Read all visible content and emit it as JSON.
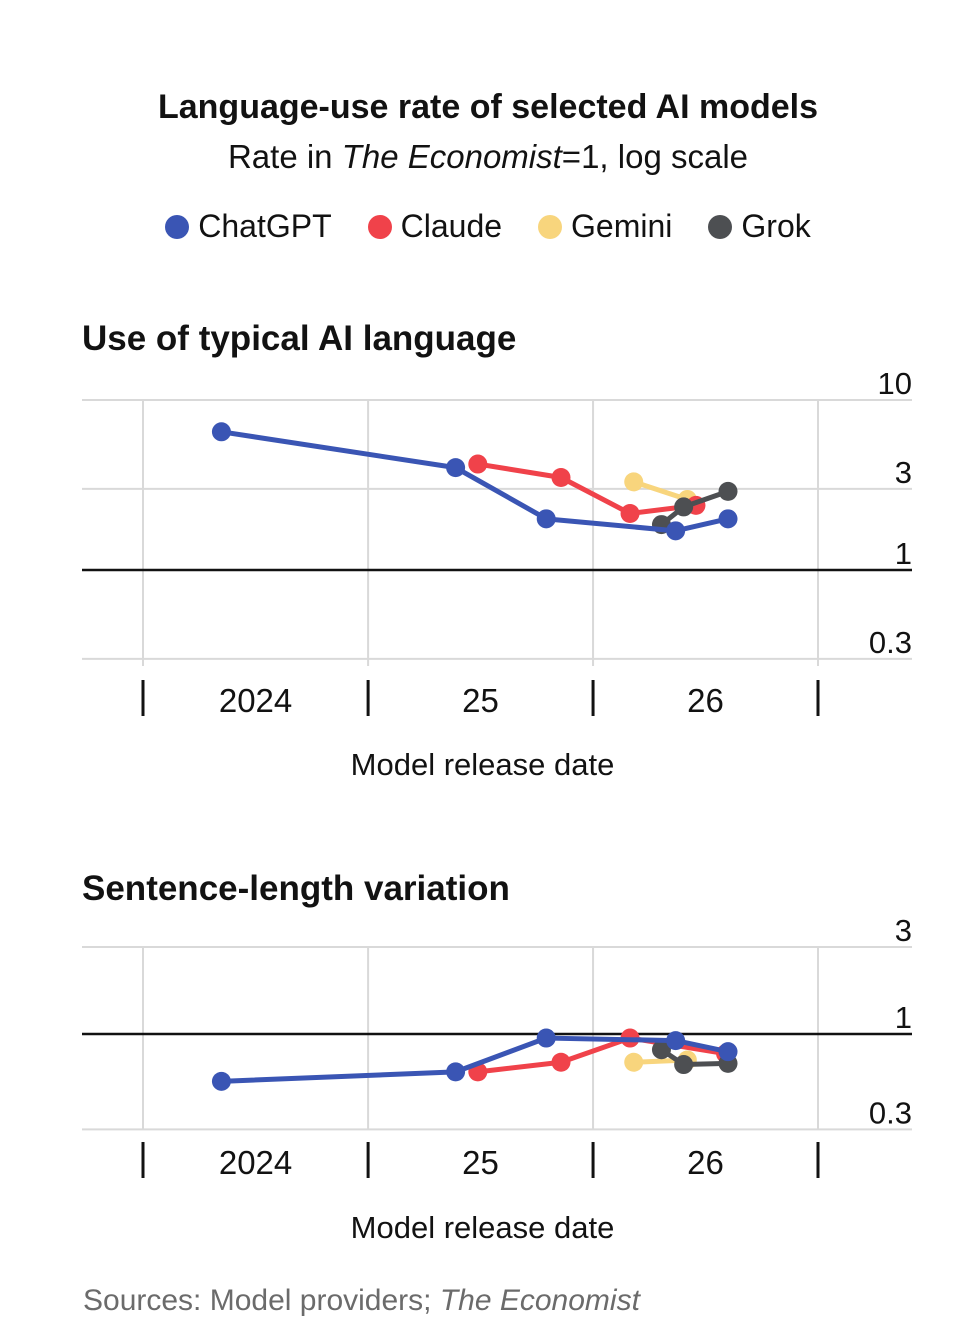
{
  "title": "Language-use rate of selected AI models",
  "subtitle_prefix": "Rate in ",
  "subtitle_italic": "The Economist",
  "subtitle_suffix": "=1, log scale",
  "legend": [
    {
      "name": "ChatGPT",
      "color": "#3a55b4"
    },
    {
      "name": "Claude",
      "color": "#f0424a"
    },
    {
      "name": "Gemini",
      "color": "#f8d57d"
    },
    {
      "name": "Grok",
      "color": "#4d4f52"
    }
  ],
  "source_prefix": "Sources: Model providers; ",
  "source_italic": "The Economist",
  "chart_data": [
    {
      "type": "line",
      "title": "Use of typical AI language",
      "xlabel": "Model release date",
      "ylabel": "",
      "y_scale": "log",
      "ylim": [
        0.3,
        10
      ],
      "yticks": [
        {
          "value": 10,
          "label": "10"
        },
        {
          "value": 3,
          "label": "3"
        },
        {
          "value": 1,
          "label": "1"
        },
        {
          "value": 0.3,
          "label": "0.3"
        }
      ],
      "xlim": [
        "2023-07-01",
        "2026-07-01"
      ],
      "xticks": [
        {
          "value": "2024-07-01",
          "label": "2024"
        },
        {
          "value": "2025-07-01",
          "label": "25"
        },
        {
          "value": "2026-07-01",
          "label": "26"
        }
      ],
      "grid": true,
      "series": [
        {
          "name": "ChatGPT",
          "color": "#3a55b4",
          "points": [
            [
              "2023-11-06",
              6.5
            ],
            [
              "2024-11-20",
              4.0
            ],
            [
              "2025-04-16",
              2.0
            ],
            [
              "2025-11-12",
              1.7
            ],
            [
              "2026-02-05",
              2.0
            ]
          ]
        },
        {
          "name": "Claude",
          "color": "#f0424a",
          "points": [
            [
              "2024-12-26",
              4.2
            ],
            [
              "2025-05-10",
              3.5
            ],
            [
              "2025-08-30",
              2.15
            ],
            [
              "2025-12-15",
              2.4
            ]
          ]
        },
        {
          "name": "Gemini",
          "color": "#f8d57d",
          "points": [
            [
              "2025-09-05",
              3.3
            ],
            [
              "2025-12-01",
              2.6
            ]
          ]
        },
        {
          "name": "Grok",
          "color": "#4d4f52",
          "points": [
            [
              "2025-10-20",
              1.85
            ],
            [
              "2025-11-25",
              2.35
            ],
            [
              "2026-02-05",
              2.9
            ]
          ]
        }
      ]
    },
    {
      "type": "line",
      "title": "Sentence-length variation",
      "xlabel": "Model release date",
      "ylabel": "",
      "y_scale": "log",
      "ylim": [
        0.3,
        3
      ],
      "yticks": [
        {
          "value": 3,
          "label": "3"
        },
        {
          "value": 1,
          "label": "1"
        },
        {
          "value": 0.3,
          "label": "0.3"
        }
      ],
      "xlim": [
        "2023-07-01",
        "2026-07-01"
      ],
      "xticks": [
        {
          "value": "2024-07-01",
          "label": "2024"
        },
        {
          "value": "2025-07-01",
          "label": "25"
        },
        {
          "value": "2026-07-01",
          "label": "26"
        }
      ],
      "grid": true,
      "series": [
        {
          "name": "ChatGPT",
          "color": "#3a55b4",
          "points": [
            [
              "2023-11-06",
              0.55
            ],
            [
              "2024-11-20",
              0.62
            ],
            [
              "2025-04-16",
              0.95
            ],
            [
              "2025-11-12",
              0.92
            ],
            [
              "2026-02-05",
              0.8
            ]
          ]
        },
        {
          "name": "Claude",
          "color": "#f0424a",
          "points": [
            [
              "2024-12-26",
              0.62
            ],
            [
              "2025-05-10",
              0.7
            ],
            [
              "2025-08-30",
              0.95
            ],
            [
              "2026-02-01",
              0.78
            ]
          ]
        },
        {
          "name": "Gemini",
          "color": "#f8d57d",
          "points": [
            [
              "2025-09-05",
              0.7
            ],
            [
              "2025-12-01",
              0.72
            ]
          ]
        },
        {
          "name": "Grok",
          "color": "#4d4f52",
          "points": [
            [
              "2025-10-20",
              0.82
            ],
            [
              "2025-11-25",
              0.68
            ],
            [
              "2026-02-05",
              0.69
            ]
          ]
        }
      ]
    }
  ]
}
